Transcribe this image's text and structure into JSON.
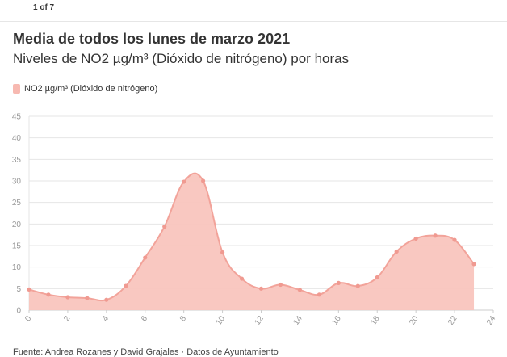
{
  "pager": "1 of 7",
  "title": "Media de todos los lunes de marzo 2021",
  "subtitle": "Niveles de NO2 µg/m³ (Dióxido de nitrógeno) por horas",
  "legend_label": "NO2 µg/m³ (Dióxido de nitrógeno)",
  "source": "Fuente: Andrea Rozanes y David Grajales · Datos de Ayuntamiento",
  "colors": {
    "fill": "#f9c5be",
    "line": "#f2a39a",
    "point": "#f09a91",
    "grid": "#e6e6e6",
    "tick": "#999999"
  },
  "chart_data": {
    "type": "area",
    "title": "Media de todos los lunes de marzo 2021",
    "subtitle": "Niveles de NO2 µg/m³ (Dióxido de nitrógeno) por horas",
    "xlabel": "",
    "ylabel": "",
    "xlim": [
      0,
      24
    ],
    "ylim": [
      0,
      45
    ],
    "xticks": [
      "0",
      "2",
      "4",
      "6",
      "8",
      "10",
      "12",
      "14",
      "16",
      "18",
      "20",
      "22",
      "24"
    ],
    "yticks": [
      "0",
      "5",
      "10",
      "15",
      "20",
      "25",
      "30",
      "35",
      "40",
      "45"
    ],
    "grid": true,
    "legend": "top-left",
    "series": [
      {
        "name": "NO2 µg/m³ (Dióxido de nitrógeno)",
        "x": [
          0,
          1,
          2,
          3,
          4,
          5,
          6,
          7,
          8,
          9,
          10,
          11,
          12,
          13,
          14,
          15,
          16,
          17,
          18,
          19,
          20,
          21,
          22,
          23
        ],
        "values": [
          4.8,
          3.6,
          3.0,
          2.8,
          2.4,
          5.6,
          12.2,
          19.4,
          29.8,
          30.0,
          13.4,
          7.3,
          5.0,
          5.9,
          4.7,
          3.6,
          6.3,
          5.6,
          7.6,
          13.6,
          16.6,
          17.3,
          16.3,
          10.7
        ]
      }
    ]
  }
}
